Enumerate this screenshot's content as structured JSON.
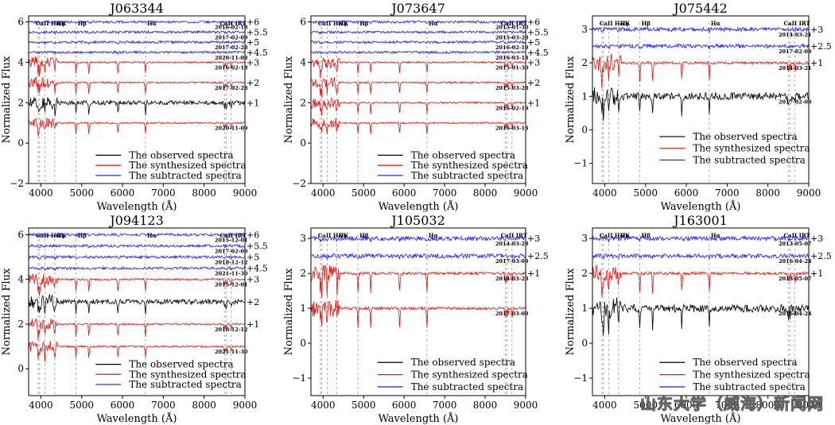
{
  "watermark": "山东大学（威海）新闻网",
  "legend_labels": [
    "The observed spectra",
    "The synthesized spectra",
    "The subtracted spectra"
  ],
  "colors": {
    "observed": "#000000",
    "synthesized": "#e8120c",
    "subtracted": "#1a1aff",
    "lines": "#9a9a9a"
  },
  "line_markers": [
    {
      "label": "CaII H&K",
      "x": 3950
    },
    {
      "label": "Hγ",
      "x": 4340
    },
    {
      "label": "Hβ",
      "x": 4861
    },
    {
      "label": "Hα",
      "x": 6563
    },
    {
      "label": "CaII IRT",
      "x": 8542
    }
  ],
  "chart_data": [
    {
      "type": "line",
      "title": "J063344",
      "xlabel": "Wavelength (Å)",
      "ylabel": "Normalized Flux",
      "xlim": [
        3700,
        9000
      ],
      "ylim": [
        -2,
        6.3
      ],
      "xticks": [
        4000,
        5000,
        6000,
        7000,
        8000,
        9000
      ],
      "yticks": [
        -2,
        0,
        2,
        4,
        6
      ],
      "series": [
        {
          "kind": "subtracted",
          "offset": 6,
          "label": "2016-02-18",
          "offset_label": "+6"
        },
        {
          "kind": "subtracted",
          "offset": 5.5,
          "label": "2017-02-09",
          "offset_label": "+5.5"
        },
        {
          "kind": "subtracted",
          "offset": 5,
          "label": "2017-02-28",
          "offset_label": "+5"
        },
        {
          "kind": "subtracted",
          "offset": 4.5,
          "label": "2020-11-09",
          "offset_label": "+4.5"
        },
        {
          "kind": "synthesized",
          "offset": 4,
          "label": "2016-02-18",
          "offset_label": "+3"
        },
        {
          "kind": "synthesized",
          "offset": 3,
          "label": "2017-02-28",
          "offset_label": "+2"
        },
        {
          "kind": "observed",
          "offset": 2,
          "label": "",
          "offset_label": "+1"
        },
        {
          "kind": "synthesized",
          "offset": 1,
          "label": "2020-11-09",
          "offset_label": ""
        }
      ],
      "legend_y": [
        -0.6,
        -1.1,
        -1.6
      ]
    },
    {
      "type": "line",
      "title": "J073647",
      "xlabel": "Wavelength (Å)",
      "ylabel": "Normalized Flux",
      "xlim": [
        3700,
        9000
      ],
      "ylim": [
        -2,
        6.3
      ],
      "xticks": [
        4000,
        5000,
        6000,
        7000,
        8000,
        9000
      ],
      "yticks": [
        -2,
        0,
        2,
        4,
        6
      ],
      "series": [
        {
          "kind": "subtracted",
          "offset": 6,
          "label": "2015-01-30",
          "offset_label": "+6"
        },
        {
          "kind": "subtracted",
          "offset": 5.5,
          "label": "2015-03-28",
          "offset_label": "+5.5"
        },
        {
          "kind": "subtracted",
          "offset": 5,
          "label": "2016-02-19",
          "offset_label": "+5"
        },
        {
          "kind": "subtracted",
          "offset": 4.5,
          "label": "2016-03-13",
          "offset_label": "+4.5"
        },
        {
          "kind": "synthesized",
          "offset": 4,
          "label": "2015-01-30",
          "offset_label": "+3"
        },
        {
          "kind": "synthesized",
          "offset": 3,
          "label": "2015-03-28",
          "offset_label": "+2"
        },
        {
          "kind": "synthesized",
          "offset": 2,
          "label": "2016-02-19",
          "offset_label": "+1"
        },
        {
          "kind": "synthesized",
          "offset": 1,
          "label": "2016-03-13",
          "offset_label": ""
        }
      ],
      "legend_y": [
        -0.6,
        -1.1,
        -1.6
      ]
    },
    {
      "type": "line",
      "title": "J075442",
      "xlabel": "Wavelength (Å)",
      "ylabel": "Normalized Flux",
      "xlim": [
        3700,
        9000
      ],
      "ylim": [
        -1.6,
        3.4
      ],
      "xticks": [
        4000,
        5000,
        6000,
        7000,
        8000,
        9000
      ],
      "yticks": [
        -1,
        0,
        1,
        2,
        3
      ],
      "series": [
        {
          "kind": "subtracted",
          "offset": 3,
          "label": "2014-03-21",
          "offset_label": "+3"
        },
        {
          "kind": "subtracted",
          "offset": 2.5,
          "label": "2017-02-09",
          "offset_label": "+2.5"
        },
        {
          "kind": "synthesized",
          "offset": 2,
          "label": "2014-03-21",
          "offset_label": "+1"
        },
        {
          "kind": "observed",
          "offset": 1,
          "label": "2017-02-09",
          "offset_label": ""
        }
      ],
      "legend_y": [
        -0.2,
        -0.55,
        -0.9
      ]
    },
    {
      "type": "line",
      "title": "J094123",
      "xlabel": "Wavelength (Å)",
      "ylabel": "Normalized Flux",
      "xlim": [
        3700,
        9000
      ],
      "ylim": [
        -1.2,
        6.3
      ],
      "xticks": [
        4000,
        5000,
        6000,
        7000,
        8000,
        9000
      ],
      "yticks": [
        0,
        2,
        4,
        6
      ],
      "series": [
        {
          "kind": "subtracted",
          "offset": 6,
          "label": "2015-12-01",
          "offset_label": "+6"
        },
        {
          "kind": "subtracted",
          "offset": 5.5,
          "label": "2017-02-09",
          "offset_label": "+5.5"
        },
        {
          "kind": "subtracted",
          "offset": 5,
          "label": "2018-12-12",
          "offset_label": "+5"
        },
        {
          "kind": "subtracted",
          "offset": 4.5,
          "label": "2021-11-30",
          "offset_label": "+4.5"
        },
        {
          "kind": "synthesized",
          "offset": 4,
          "label": "2015-12-01",
          "offset_label": "+3"
        },
        {
          "kind": "observed",
          "offset": 3,
          "label": "",
          "offset_label": "+2"
        },
        {
          "kind": "synthesized",
          "offset": 2,
          "label": "2018-12-12",
          "offset_label": "+1"
        },
        {
          "kind": "synthesized",
          "offset": 1,
          "label": "2021-11-30",
          "offset_label": ""
        }
      ],
      "legend_y": [
        0.2,
        -0.25,
        -0.7
      ]
    },
    {
      "type": "line",
      "title": "J105032",
      "xlabel": "Wavelength (Å)",
      "ylabel": "Normalized Flux",
      "xlim": [
        3700,
        9000
      ],
      "ylim": [
        -1.5,
        3.3
      ],
      "xticks": [
        4000,
        5000,
        6000,
        7000,
        8000,
        9000
      ],
      "yticks": [
        -1,
        0,
        1,
        2,
        3
      ],
      "series": [
        {
          "kind": "subtracted",
          "offset": 3,
          "label": "2014-03-23",
          "offset_label": "+3"
        },
        {
          "kind": "subtracted",
          "offset": 2.5,
          "label": "2017-03-09",
          "offset_label": "+2.5"
        },
        {
          "kind": "synthesized",
          "offset": 2,
          "label": "2014-03-23",
          "offset_label": "+1"
        },
        {
          "kind": "synthesized",
          "offset": 1,
          "label": "2017-03-09",
          "offset_label": ""
        }
      ],
      "legend_y": [
        -0.55,
        -0.9,
        -1.25
      ]
    },
    {
      "type": "line",
      "title": "J163001",
      "xlabel": "Wavelength (Å)",
      "ylabel": "Normalized Flux",
      "xlim": [
        3700,
        9000
      ],
      "ylim": [
        -1.5,
        3.3
      ],
      "xticks": [
        4000,
        5000,
        6000,
        7000,
        8000,
        9000
      ],
      "yticks": [
        -1,
        0,
        1,
        2,
        3
      ],
      "series": [
        {
          "kind": "subtracted",
          "offset": 3,
          "label": "2013-05-07",
          "offset_label": "+3"
        },
        {
          "kind": "subtracted",
          "offset": 2.5,
          "label": "2016-04-24",
          "offset_label": "+2.5"
        },
        {
          "kind": "synthesized",
          "offset": 2,
          "label": "2013-05-07",
          "offset_label": "+1"
        },
        {
          "kind": "observed",
          "offset": 1,
          "label": "2016-04-24",
          "offset_label": ""
        }
      ],
      "legend_y": [
        -0.55,
        -0.9,
        -1.25
      ]
    }
  ]
}
